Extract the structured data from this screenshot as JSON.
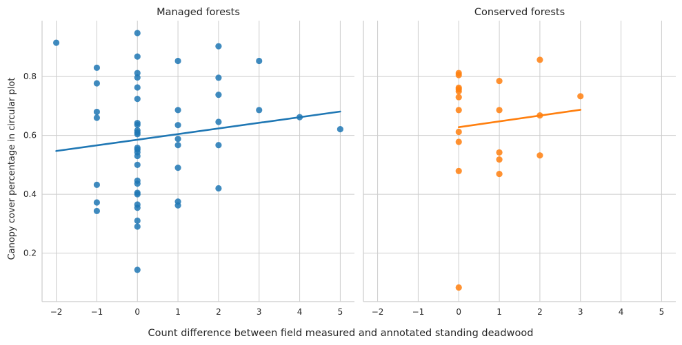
{
  "figure": {
    "xlabel": "Count difference between field measured and annotated standing deadwood",
    "ylabel": "Canopy cover percentage in circular plot"
  },
  "chart_data": [
    {
      "type": "scatter",
      "title": "Managed forests",
      "color": "#1f77b4",
      "xlim": [
        -2.35,
        5.35
      ],
      "ylim": [
        0.035,
        0.99
      ],
      "xticks": [
        -2,
        -1,
        0,
        1,
        2,
        3,
        4,
        5
      ],
      "yticks": [
        0.2,
        0.4,
        0.6,
        0.8
      ],
      "grid": true,
      "points": [
        [
          -2,
          0.915
        ],
        [
          -1,
          0.83
        ],
        [
          -1,
          0.777
        ],
        [
          -1,
          0.68
        ],
        [
          -1,
          0.66
        ],
        [
          -1,
          0.432
        ],
        [
          -1,
          0.372
        ],
        [
          -1,
          0.343
        ],
        [
          0,
          0.948
        ],
        [
          0,
          0.868
        ],
        [
          0,
          0.812
        ],
        [
          0,
          0.797
        ],
        [
          0,
          0.763
        ],
        [
          0,
          0.724
        ],
        [
          0,
          0.642
        ],
        [
          0,
          0.636
        ],
        [
          0,
          0.617
        ],
        [
          0,
          0.61
        ],
        [
          0,
          0.604
        ],
        [
          0,
          0.558
        ],
        [
          0,
          0.552
        ],
        [
          0,
          0.543
        ],
        [
          0,
          0.53
        ],
        [
          0,
          0.5
        ],
        [
          0,
          0.446
        ],
        [
          0,
          0.436
        ],
        [
          0,
          0.405
        ],
        [
          0,
          0.4
        ],
        [
          0,
          0.365
        ],
        [
          0,
          0.354
        ],
        [
          0,
          0.31
        ],
        [
          0,
          0.29
        ],
        [
          0,
          0.143
        ],
        [
          1,
          0.853
        ],
        [
          1,
          0.686
        ],
        [
          1,
          0.635
        ],
        [
          1,
          0.588
        ],
        [
          1,
          0.567
        ],
        [
          1,
          0.49
        ],
        [
          1,
          0.375
        ],
        [
          1,
          0.362
        ],
        [
          2,
          0.903
        ],
        [
          2,
          0.796
        ],
        [
          2,
          0.738
        ],
        [
          2,
          0.646
        ],
        [
          2,
          0.567
        ],
        [
          2,
          0.42
        ],
        [
          3,
          0.853
        ],
        [
          3,
          0.686
        ],
        [
          4,
          0.662
        ],
        [
          5,
          0.621
        ]
      ],
      "regression": {
        "x": [
          -2,
          5
        ],
        "y": [
          0.547,
          0.681
        ]
      }
    },
    {
      "type": "scatter",
      "title": "Conserved forests",
      "color": "#ff7f0e",
      "xlim": [
        -2.35,
        5.35
      ],
      "ylim": [
        0.035,
        0.99
      ],
      "xticks": [
        -2,
        -1,
        0,
        1,
        2,
        3,
        4,
        5
      ],
      "yticks": [
        0.2,
        0.4,
        0.6,
        0.8
      ],
      "grid": true,
      "points": [
        [
          0,
          0.812
        ],
        [
          0,
          0.805
        ],
        [
          0,
          0.762
        ],
        [
          0,
          0.757
        ],
        [
          0,
          0.75
        ],
        [
          0,
          0.73
        ],
        [
          0,
          0.686
        ],
        [
          0,
          0.612
        ],
        [
          0,
          0.578
        ],
        [
          0,
          0.479
        ],
        [
          0,
          0.083
        ],
        [
          1,
          0.785
        ],
        [
          1,
          0.686
        ],
        [
          1,
          0.542
        ],
        [
          1,
          0.518
        ],
        [
          1,
          0.469
        ],
        [
          2,
          0.857
        ],
        [
          2,
          0.668
        ],
        [
          2,
          0.532
        ],
        [
          3,
          0.733
        ]
      ],
      "regression": {
        "x": [
          0,
          3
        ],
        "y": [
          0.628,
          0.687
        ]
      }
    }
  ]
}
